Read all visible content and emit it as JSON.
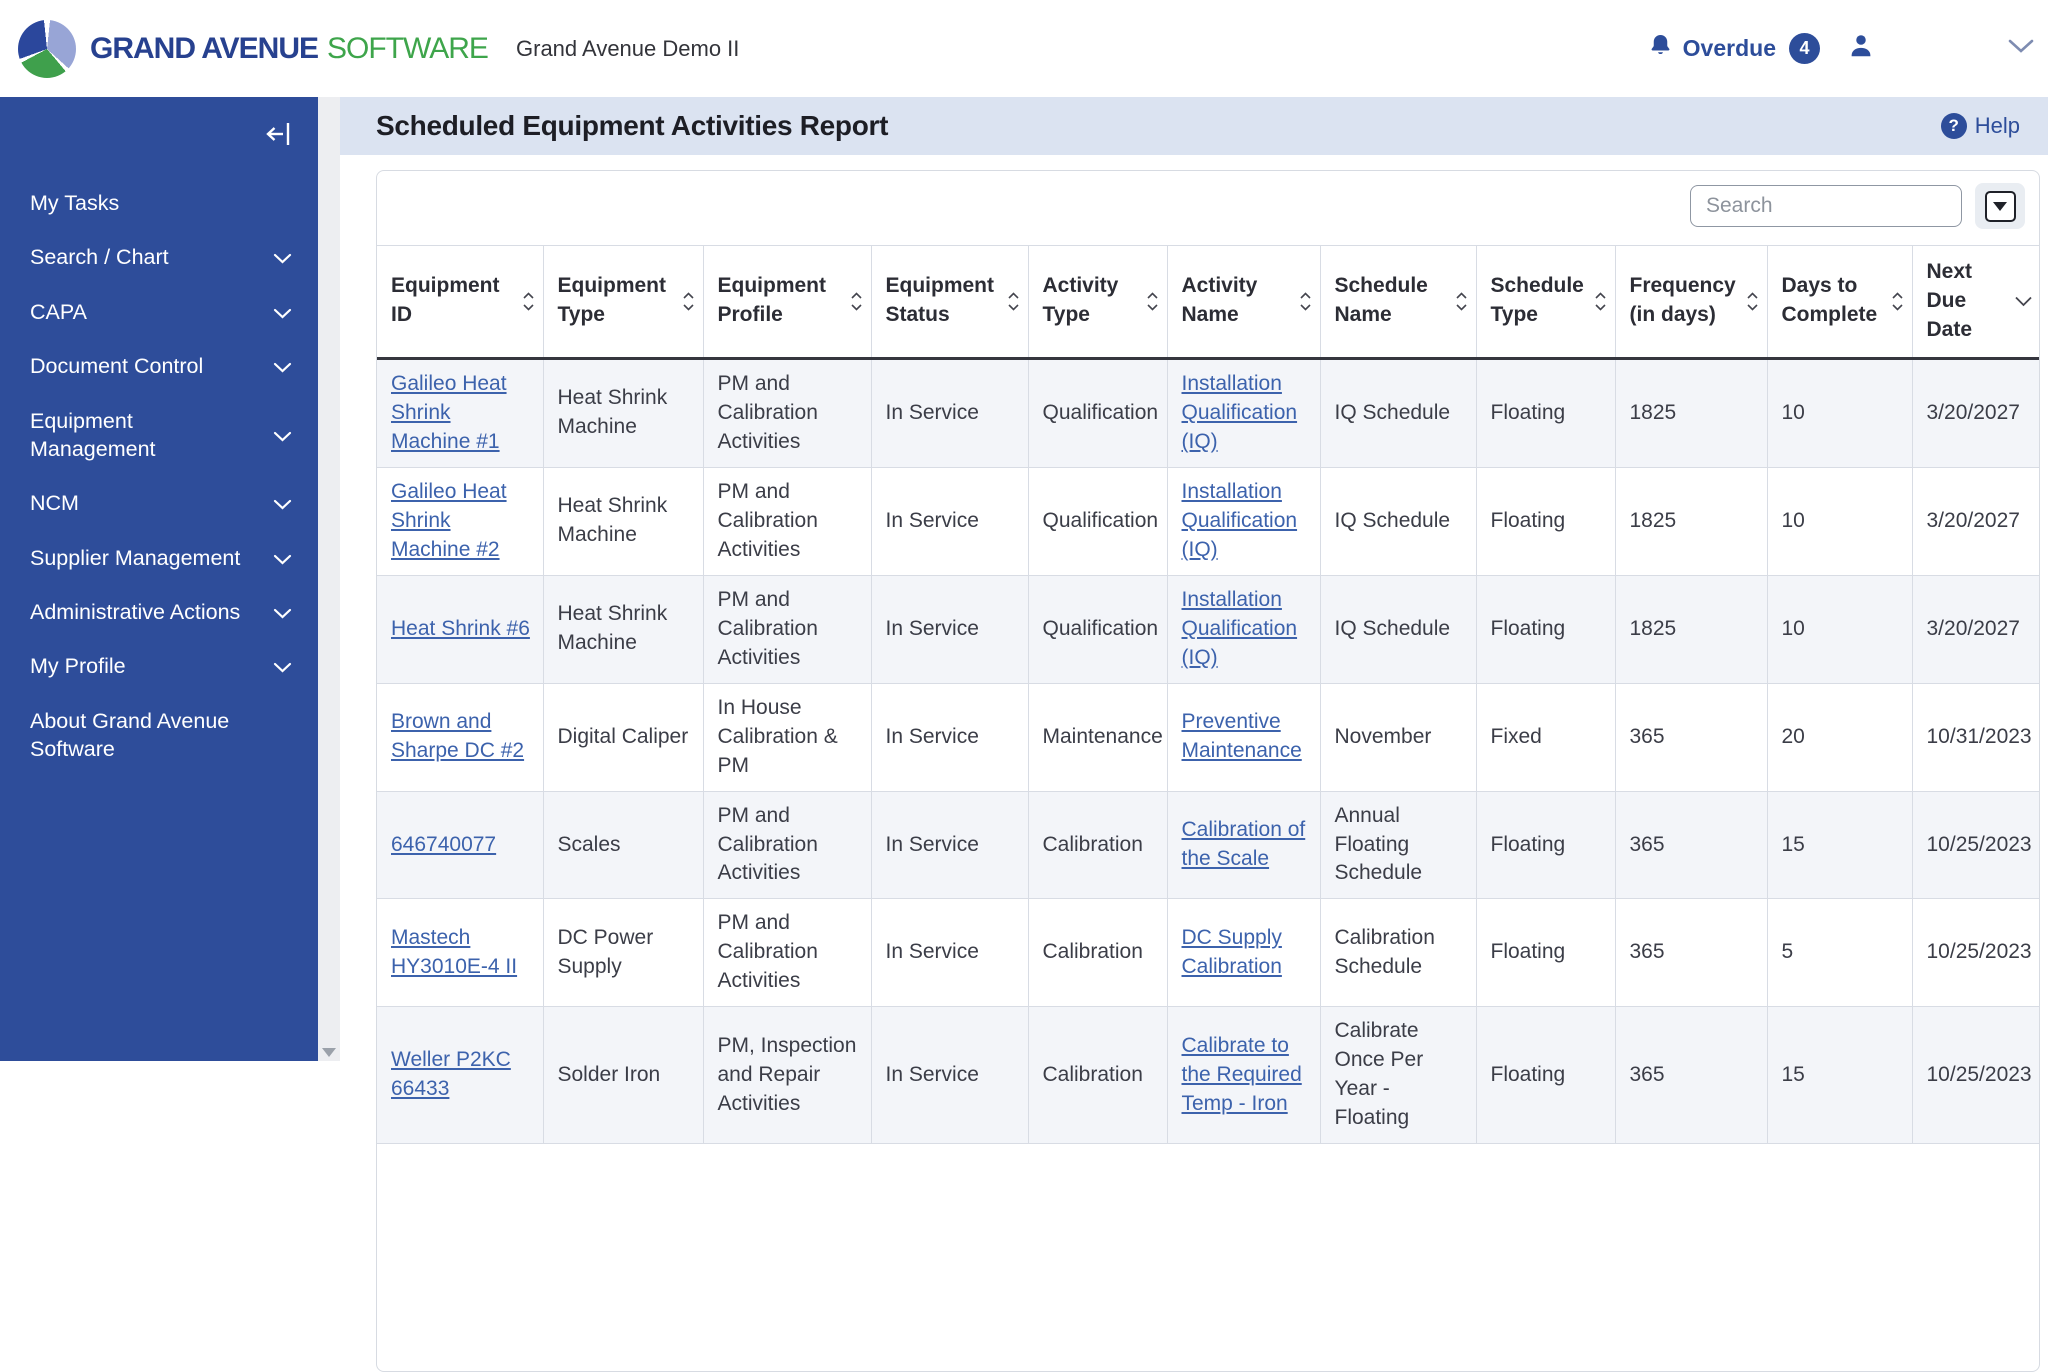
{
  "header": {
    "brand": {
      "primary": "GRAND AVENUE",
      "secondary": "SOFTWARE",
      "logo_icon": "grand-avenue-logo-icon"
    },
    "environment_title": "Grand Avenue Demo II",
    "notifications": {
      "icon": "bell-icon",
      "label": "Overdue",
      "count": "4"
    },
    "user_icon": "user-icon",
    "chevron_icon": "chevron-down-icon"
  },
  "sidebar": {
    "collapse_icon": "collapse-sidebar-icon",
    "items": [
      {
        "label": "My Tasks",
        "has_submenu": false
      },
      {
        "label": "Search / Chart",
        "has_submenu": true
      },
      {
        "label": "CAPA",
        "has_submenu": true
      },
      {
        "label": "Document Control",
        "has_submenu": true
      },
      {
        "label": "Equipment Management",
        "has_submenu": true
      },
      {
        "label": "NCM",
        "has_submenu": true
      },
      {
        "label": "Supplier Management",
        "has_submenu": true
      },
      {
        "label": "Administrative Actions",
        "has_submenu": true
      },
      {
        "label": "My Profile",
        "has_submenu": true
      },
      {
        "label": "About Grand Avenue Software",
        "has_submenu": false
      }
    ]
  },
  "page": {
    "title": "Scheduled Equipment Activities Report",
    "help_icon_glyph": "?",
    "help_label": "Help"
  },
  "toolbar": {
    "search_placeholder": "Search",
    "dropdown_icon": "dropdown-arrow-icon"
  },
  "table": {
    "columns": [
      {
        "key": "equipment_id",
        "label": "Equipment ID",
        "sort": "both",
        "link": true
      },
      {
        "key": "equipment_type",
        "label": "Equipment Type",
        "sort": "both"
      },
      {
        "key": "equipment_profile",
        "label": "Equipment Profile",
        "sort": "both"
      },
      {
        "key": "equipment_status",
        "label": "Equipment Status",
        "sort": "both"
      },
      {
        "key": "activity_type",
        "label": "Activity Type",
        "sort": "both"
      },
      {
        "key": "activity_name",
        "label": "Activity Name",
        "sort": "both",
        "link": true
      },
      {
        "key": "schedule_name",
        "label": "Schedule Name",
        "sort": "both"
      },
      {
        "key": "schedule_type",
        "label": "Schedule Type",
        "sort": "both"
      },
      {
        "key": "frequency_in_days",
        "label": "Frequency (in days)",
        "sort": "both"
      },
      {
        "key": "days_to_complete",
        "label": "Days to Complete",
        "sort": "both"
      },
      {
        "key": "next_due_date",
        "label": "Next Due Date",
        "sort": "desc"
      }
    ],
    "rows": [
      {
        "equipment_id": "Galileo Heat Shrink Machine #1",
        "equipment_type": "Heat Shrink Machine",
        "equipment_profile": "PM and Calibration Activities",
        "equipment_status": "In Service",
        "activity_type": "Qualification",
        "activity_name": "Installation Qualification (IQ)",
        "schedule_name": "IQ Schedule",
        "schedule_type": "Floating",
        "frequency_in_days": "1825",
        "days_to_complete": "10",
        "next_due_date": "3/20/2027"
      },
      {
        "equipment_id": "Galileo Heat Shrink Machine #2",
        "equipment_type": "Heat Shrink Machine",
        "equipment_profile": "PM and Calibration Activities",
        "equipment_status": "In Service",
        "activity_type": "Qualification",
        "activity_name": "Installation Qualification (IQ)",
        "schedule_name": "IQ Schedule",
        "schedule_type": "Floating",
        "frequency_in_days": "1825",
        "days_to_complete": "10",
        "next_due_date": "3/20/2027"
      },
      {
        "equipment_id": "Heat Shrink #6",
        "equipment_type": "Heat Shrink Machine",
        "equipment_profile": "PM and Calibration Activities",
        "equipment_status": "In Service",
        "activity_type": "Qualification",
        "activity_name": "Installation Qualification (IQ)",
        "schedule_name": "IQ Schedule",
        "schedule_type": "Floating",
        "frequency_in_days": "1825",
        "days_to_complete": "10",
        "next_due_date": "3/20/2027"
      },
      {
        "equipment_id": "Brown and Sharpe DC #2",
        "equipment_type": "Digital Caliper",
        "equipment_profile": "In House Calibration & PM",
        "equipment_status": "In Service",
        "activity_type": "Maintenance",
        "activity_name": "Preventive Maintenance",
        "schedule_name": "November",
        "schedule_type": "Fixed",
        "frequency_in_days": "365",
        "days_to_complete": "20",
        "next_due_date": "10/31/2023"
      },
      {
        "equipment_id": "646740077",
        "equipment_type": "Scales",
        "equipment_profile": "PM and Calibration Activities",
        "equipment_status": "In Service",
        "activity_type": "Calibration",
        "activity_name": "Calibration of the Scale",
        "schedule_name": "Annual Floating Schedule",
        "schedule_type": "Floating",
        "frequency_in_days": "365",
        "days_to_complete": "15",
        "next_due_date": "10/25/2023"
      },
      {
        "equipment_id": "Mastech HY3010E-4 II",
        "equipment_type": "DC Power Supply",
        "equipment_profile": "PM and Calibration Activities",
        "equipment_status": "In Service",
        "activity_type": "Calibration",
        "activity_name": "DC Supply Calibration",
        "schedule_name": "Calibration Schedule",
        "schedule_type": "Floating",
        "frequency_in_days": "365",
        "days_to_complete": "5",
        "next_due_date": "10/25/2023"
      },
      {
        "equipment_id": "Weller P2KC 66433",
        "equipment_type": "Solder Iron",
        "equipment_profile": "PM, Inspection and Repair Activities",
        "equipment_status": "In Service",
        "activity_type": "Calibration",
        "activity_name": "Calibrate to the Required Temp - Iron",
        "schedule_name": "Calibrate Once Per Year - Floating",
        "schedule_type": "Floating",
        "frequency_in_days": "365",
        "days_to_complete": "15",
        "next_due_date": "10/25/2023"
      }
    ]
  },
  "colors": {
    "accent_blue": "#2d4d9a",
    "sidebar_bg": "#2e4d9a",
    "title_band_bg": "#dbe3f1",
    "link_blue": "#3c62ac",
    "zebra_row_bg": "#f3f5f9",
    "logo_navy": "#27418f",
    "logo_green": "#3ea54b",
    "logo_periwinkle": "#98a5d6",
    "header_underline": "#35363e"
  }
}
